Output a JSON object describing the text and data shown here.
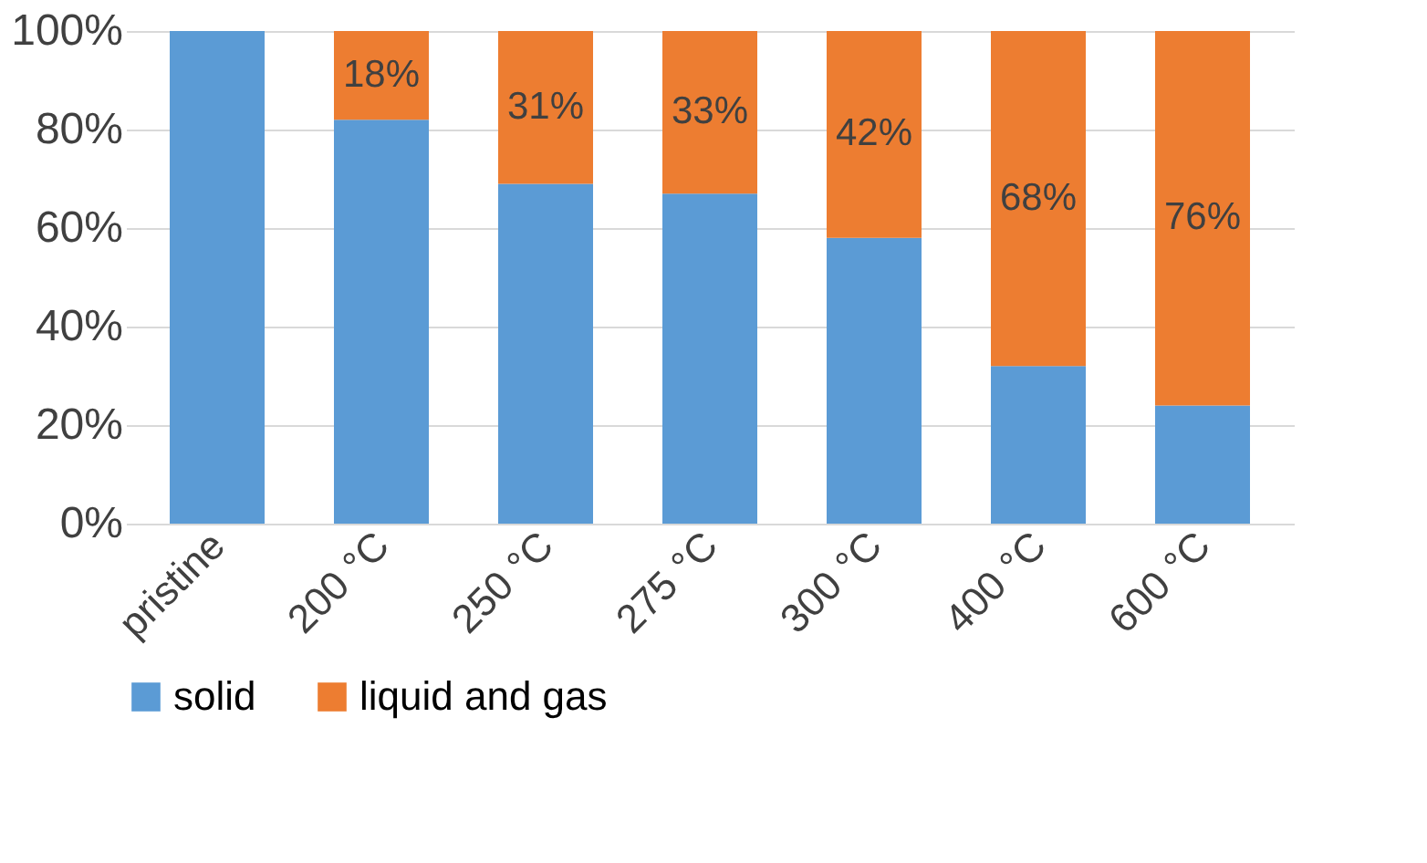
{
  "chart_data": {
    "type": "bar",
    "stacked": true,
    "categories": [
      "pristine",
      "200 °C",
      "250 °C",
      "275 °C",
      "300 °C",
      "400 °C",
      "600 °C"
    ],
    "series": [
      {
        "name": "solid",
        "color": "#5b9bd5",
        "values": [
          100,
          82,
          69,
          67,
          58,
          32,
          24
        ]
      },
      {
        "name": "liquid and gas",
        "color": "#ed7d31",
        "values": [
          0,
          18,
          31,
          33,
          42,
          68,
          76
        ],
        "value_labels": [
          null,
          "18%",
          "31%",
          "33%",
          "42%",
          "68%",
          "76%"
        ]
      }
    ],
    "ylim": [
      0,
      100
    ],
    "yticks": [
      {
        "value": 0,
        "label": "0%"
      },
      {
        "value": 20,
        "label": "20%"
      },
      {
        "value": 40,
        "label": "40%"
      },
      {
        "value": 60,
        "label": "60%"
      },
      {
        "value": 80,
        "label": "80%"
      },
      {
        "value": 100,
        "label": "100%"
      }
    ],
    "grid": "y",
    "legend": "bottom"
  }
}
